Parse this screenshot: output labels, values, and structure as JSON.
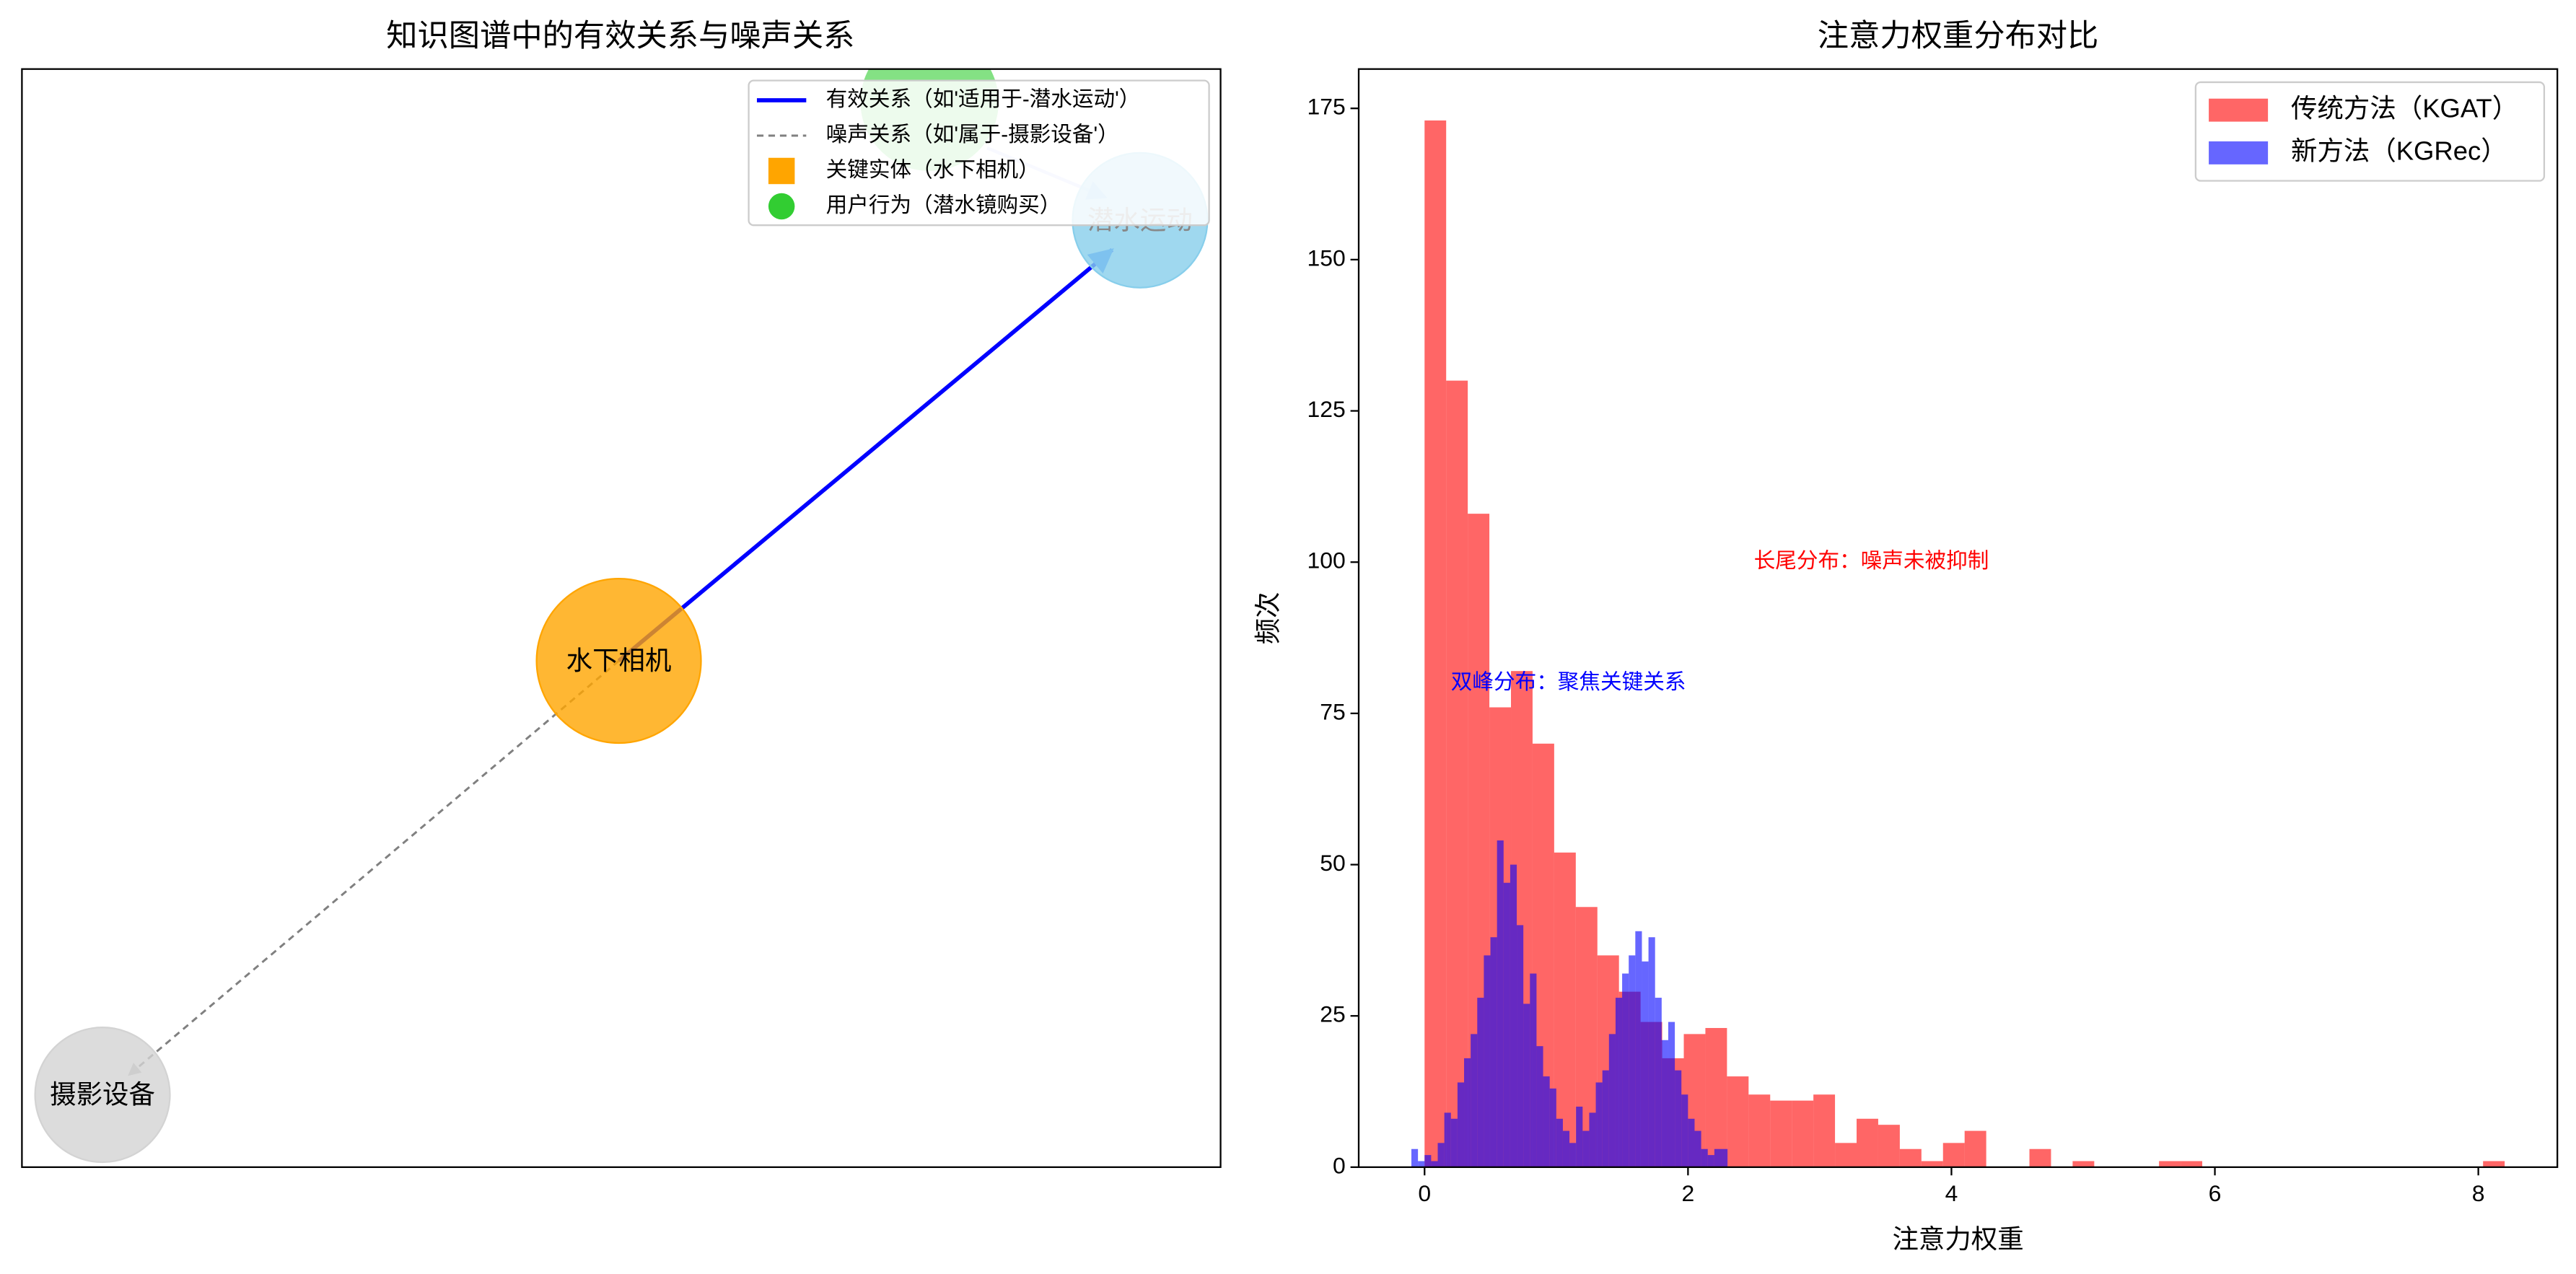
{
  "chart_data": [
    {
      "type": "network",
      "title": "知识图谱中的有效关系与噪声关系",
      "nodes": [
        {
          "label": "水下相机",
          "color": "#ffa500"
        },
        {
          "label": "潜水运动",
          "color": "#87ceeb"
        },
        {
          "label": "摄影设备",
          "color": "#d3d3d3"
        }
      ],
      "legend": [
        {
          "name": "有效关系（如'适用于-潜水运动'）",
          "color": "#0000ff"
        },
        {
          "name": "噪声关系（如'属于-摄影设备'）",
          "color": "#808080"
        },
        {
          "name": "关键实体（水下相机）",
          "color": "#ffa500"
        },
        {
          "name": "用户行为（潜水镜购买）",
          "color": "#32cd32"
        }
      ]
    },
    {
      "type": "histogram",
      "title": "注意力权重分布对比",
      "xlabel": "注意力权重",
      "ylabel": "频次",
      "xlim": [
        -0.5,
        8.6
      ],
      "xticks": [
        0,
        2,
        4,
        6,
        8
      ],
      "ylim": [
        0,
        181.5
      ],
      "yticks": [
        0,
        25,
        50,
        75,
        100,
        125,
        150,
        175
      ],
      "legend_position": "upper right",
      "series": [
        {
          "name": "传统方法（KGAT）",
          "color": "#ff0000",
          "bins": [
            0,
            0.164,
            0.328,
            0.492,
            0.656,
            0.82,
            0.984,
            1.148,
            1.312,
            1.476,
            1.64,
            1.804,
            1.968,
            2.132,
            2.296,
            2.46,
            2.624,
            2.788,
            2.952,
            3.116,
            3.28,
            3.444,
            3.608,
            3.772,
            3.936,
            4.1,
            4.264,
            4.428,
            4.592,
            4.756,
            4.92,
            5.084,
            5.248,
            5.412,
            5.576,
            5.74,
            5.904,
            6.068,
            6.232,
            6.396,
            6.56,
            6.724,
            6.888,
            7.052,
            7.216,
            7.38,
            7.544,
            7.708,
            7.872,
            8.036,
            8.2
          ],
          "values": [
            173,
            130,
            108,
            76,
            82,
            70,
            52,
            43,
            35,
            29,
            24,
            18,
            22,
            23,
            15,
            12,
            11,
            11,
            12,
            4,
            8,
            7,
            3,
            1,
            4,
            6,
            0,
            0,
            3,
            0,
            1,
            0,
            0,
            0,
            1,
            1,
            0,
            0,
            0,
            0,
            0,
            0,
            0,
            0,
            0,
            0,
            0,
            0,
            0,
            1
          ]
        },
        {
          "name": "新方法（KGRec）",
          "color": "#0000ff",
          "bins": [
            -0.1,
            -0.05,
            0,
            0.05,
            0.1,
            0.15,
            0.2,
            0.25,
            0.3,
            0.35,
            0.4,
            0.45,
            0.5,
            0.55,
            0.6,
            0.65,
            0.7,
            0.75,
            0.8,
            0.85,
            0.9,
            0.95,
            1,
            1.05,
            1.1,
            1.15,
            1.2,
            1.25,
            1.3,
            1.35,
            1.4,
            1.45,
            1.5,
            1.55,
            1.6,
            1.65,
            1.7,
            1.75,
            1.8,
            1.85,
            1.9,
            1.95,
            2,
            2.05,
            2.1,
            2.15,
            2.2,
            2.25,
            2.3
          ],
          "values": [
            3,
            1,
            2,
            1,
            4,
            9,
            8,
            14,
            18,
            22,
            28,
            35,
            38,
            54,
            47,
            50,
            40,
            27,
            32,
            20,
            15,
            13,
            8,
            6,
            4,
            10,
            6,
            9,
            14,
            16,
            22,
            28,
            32,
            35,
            39,
            34,
            38,
            28,
            21,
            24,
            16,
            12,
            8,
            6,
            3,
            2,
            3,
            3
          ]
        }
      ],
      "annotations": [
        {
          "text": "长尾分布：噪声未被抑制",
          "x": 2.5,
          "y": 100,
          "color": "#ff0000"
        },
        {
          "text": "双峰分布：聚焦关键关系",
          "x": 0.2,
          "y": 80,
          "color": "#0000ff"
        }
      ]
    }
  ]
}
